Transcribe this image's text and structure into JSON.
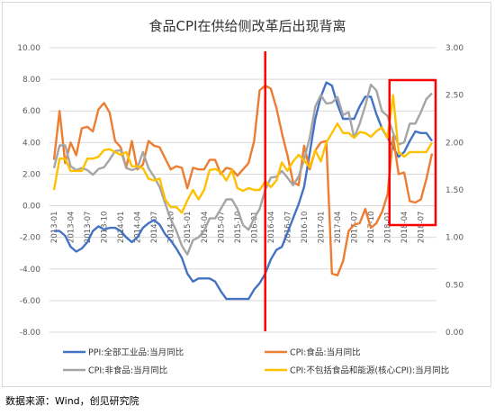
{
  "source_note": "数据来源：Wind，创见研究院",
  "chart_data": {
    "type": "line",
    "title": "食品CPI在供给侧改革后出现背离",
    "xlabel": "",
    "ylabel": "",
    "left_axis": {
      "ylim": [
        -8,
        10
      ],
      "ticks": [
        "10.00",
        "8.00",
        "6.00",
        "4.00",
        "2.00",
        "0.00",
        "-2.00",
        "-4.00",
        "-6.00",
        "-8.00"
      ]
    },
    "right_axis": {
      "ylim": [
        0,
        3
      ],
      "ticks": [
        "3.00",
        "2.50",
        "2.00",
        "1.50",
        "1.00",
        "0.50",
        "0.00"
      ]
    },
    "x_labels": [
      "2013-01",
      "2013-04",
      "2013-07",
      "2013-10",
      "2014-01",
      "2014-04",
      "2014-07",
      "2014-10",
      "2015-01",
      "2015-04",
      "2015-07",
      "2015-10",
      "2016-01",
      "2016-04",
      "2016-07",
      "2016-10",
      "2017-01",
      "2017-04",
      "2017-07",
      "2017-10",
      "2018-01",
      "2018-04",
      "2018-07"
    ],
    "n_points": 69,
    "legend_position": "bottom",
    "grid": true,
    "series": [
      {
        "name": "PPI:全部工业品:当月同比",
        "axis": "left",
        "color": "#4472c4",
        "values": [
          -1.6,
          -1.6,
          -1.9,
          -2.6,
          -2.9,
          -2.7,
          -2.3,
          -1.6,
          -1.3,
          -1.5,
          -1.4,
          -1.4,
          -1.6,
          -2.0,
          -2.3,
          -2.0,
          -1.4,
          -1.1,
          -0.9,
          -1.2,
          -1.8,
          -2.2,
          -2.7,
          -3.3,
          -4.3,
          -4.8,
          -4.6,
          -4.6,
          -4.6,
          -4.8,
          -5.4,
          -5.9,
          -5.9,
          -5.9,
          -5.9,
          -5.9,
          -5.3,
          -4.9,
          -4.3,
          -3.4,
          -2.8,
          -2.6,
          -1.7,
          -0.8,
          0.1,
          1.2,
          3.3,
          5.5,
          6.9,
          7.8,
          7.6,
          6.4,
          5.5,
          5.5,
          5.5,
          6.3,
          6.9,
          6.9,
          5.8,
          4.9,
          4.3,
          3.7,
          3.1,
          3.4,
          4.1,
          4.7,
          4.6,
          4.6,
          4.1
        ]
      },
      {
        "name": "CPI:食品:当月同比",
        "axis": "left",
        "color": "#ed7d31",
        "values": [
          2.9,
          6.0,
          2.7,
          4.0,
          3.2,
          4.9,
          5.0,
          4.7,
          6.1,
          6.5,
          5.9,
          4.1,
          3.7,
          2.4,
          4.1,
          2.3,
          2.6,
          4.1,
          3.8,
          3.7,
          3.0,
          2.3,
          2.5,
          2.4,
          1.1,
          2.4,
          2.3,
          2.3,
          2.9,
          2.9,
          2.0,
          2.4,
          2.3,
          1.9,
          2.3,
          2.7,
          4.1,
          7.3,
          7.6,
          7.4,
          6.2,
          4.6,
          3.2,
          1.5,
          1.3,
          3.8,
          2.3,
          3.5,
          4.0,
          4.1,
          -4.3,
          -4.4,
          -3.5,
          -1.6,
          -1.2,
          -1.1,
          -0.2,
          -1.4,
          -1.1,
          -0.4,
          0.7,
          4.4,
          2.0,
          2.1,
          0.3,
          0.2,
          0.4,
          1.7,
          3.3
        ]
      },
      {
        "name": "CPI:非食品:当月同比",
        "axis": "right",
        "color": "#a5a5a5",
        "values": [
          1.73,
          1.97,
          1.97,
          1.75,
          1.71,
          1.73,
          1.71,
          1.66,
          1.72,
          1.74,
          1.82,
          1.91,
          1.92,
          1.73,
          1.71,
          1.73,
          1.9,
          1.73,
          1.64,
          1.53,
          1.36,
          1.19,
          1.07,
          0.91,
          0.82,
          0.97,
          1.0,
          1.07,
          1.2,
          1.2,
          1.3,
          1.4,
          1.4,
          1.3,
          1.13,
          1.08,
          1.2,
          1.3,
          1.5,
          1.63,
          1.64,
          1.7,
          1.63,
          1.55,
          1.64,
          1.82,
          2.05,
          2.38,
          2.5,
          2.41,
          2.42,
          2.48,
          2.29,
          2.32,
          2.05,
          2.2,
          2.39,
          2.61,
          2.55,
          2.33,
          2.28,
          2.1,
          1.98,
          2.0,
          2.2,
          2.2,
          2.32,
          2.46,
          2.52
        ]
      },
      {
        "name": "CPI:不包括食品和能源(核心CPI):当月同比",
        "axis": "right",
        "color": "#ffc000",
        "values": [
          1.5,
          1.83,
          1.83,
          1.7,
          1.7,
          1.7,
          1.83,
          1.83,
          1.85,
          1.92,
          1.93,
          1.9,
          1.87,
          1.9,
          1.75,
          1.75,
          1.73,
          1.62,
          1.6,
          1.62,
          1.4,
          1.32,
          1.32,
          1.26,
          1.39,
          1.5,
          1.4,
          1.5,
          1.71,
          1.72,
          1.69,
          1.6,
          1.71,
          1.52,
          1.49,
          1.52,
          1.5,
          1.5,
          1.59,
          1.53,
          1.6,
          1.79,
          1.7,
          1.8,
          1.87,
          1.81,
          1.74,
          1.92,
          1.8,
          2.0,
          2.1,
          2.2,
          2.1,
          2.1,
          2.05,
          2.11,
          2.1,
          2.06,
          2.12,
          2.16,
          2.05,
          2.5,
          1.9,
          1.85,
          1.9,
          1.9,
          1.9,
          1.9,
          2.0
        ]
      }
    ],
    "annotations": [
      {
        "type": "vertical-line",
        "color": "#ff0000",
        "at_index": 38
      },
      {
        "type": "rectangle",
        "color": "#ff0000",
        "from_index": 61,
        "to_index": 68
      }
    ]
  }
}
